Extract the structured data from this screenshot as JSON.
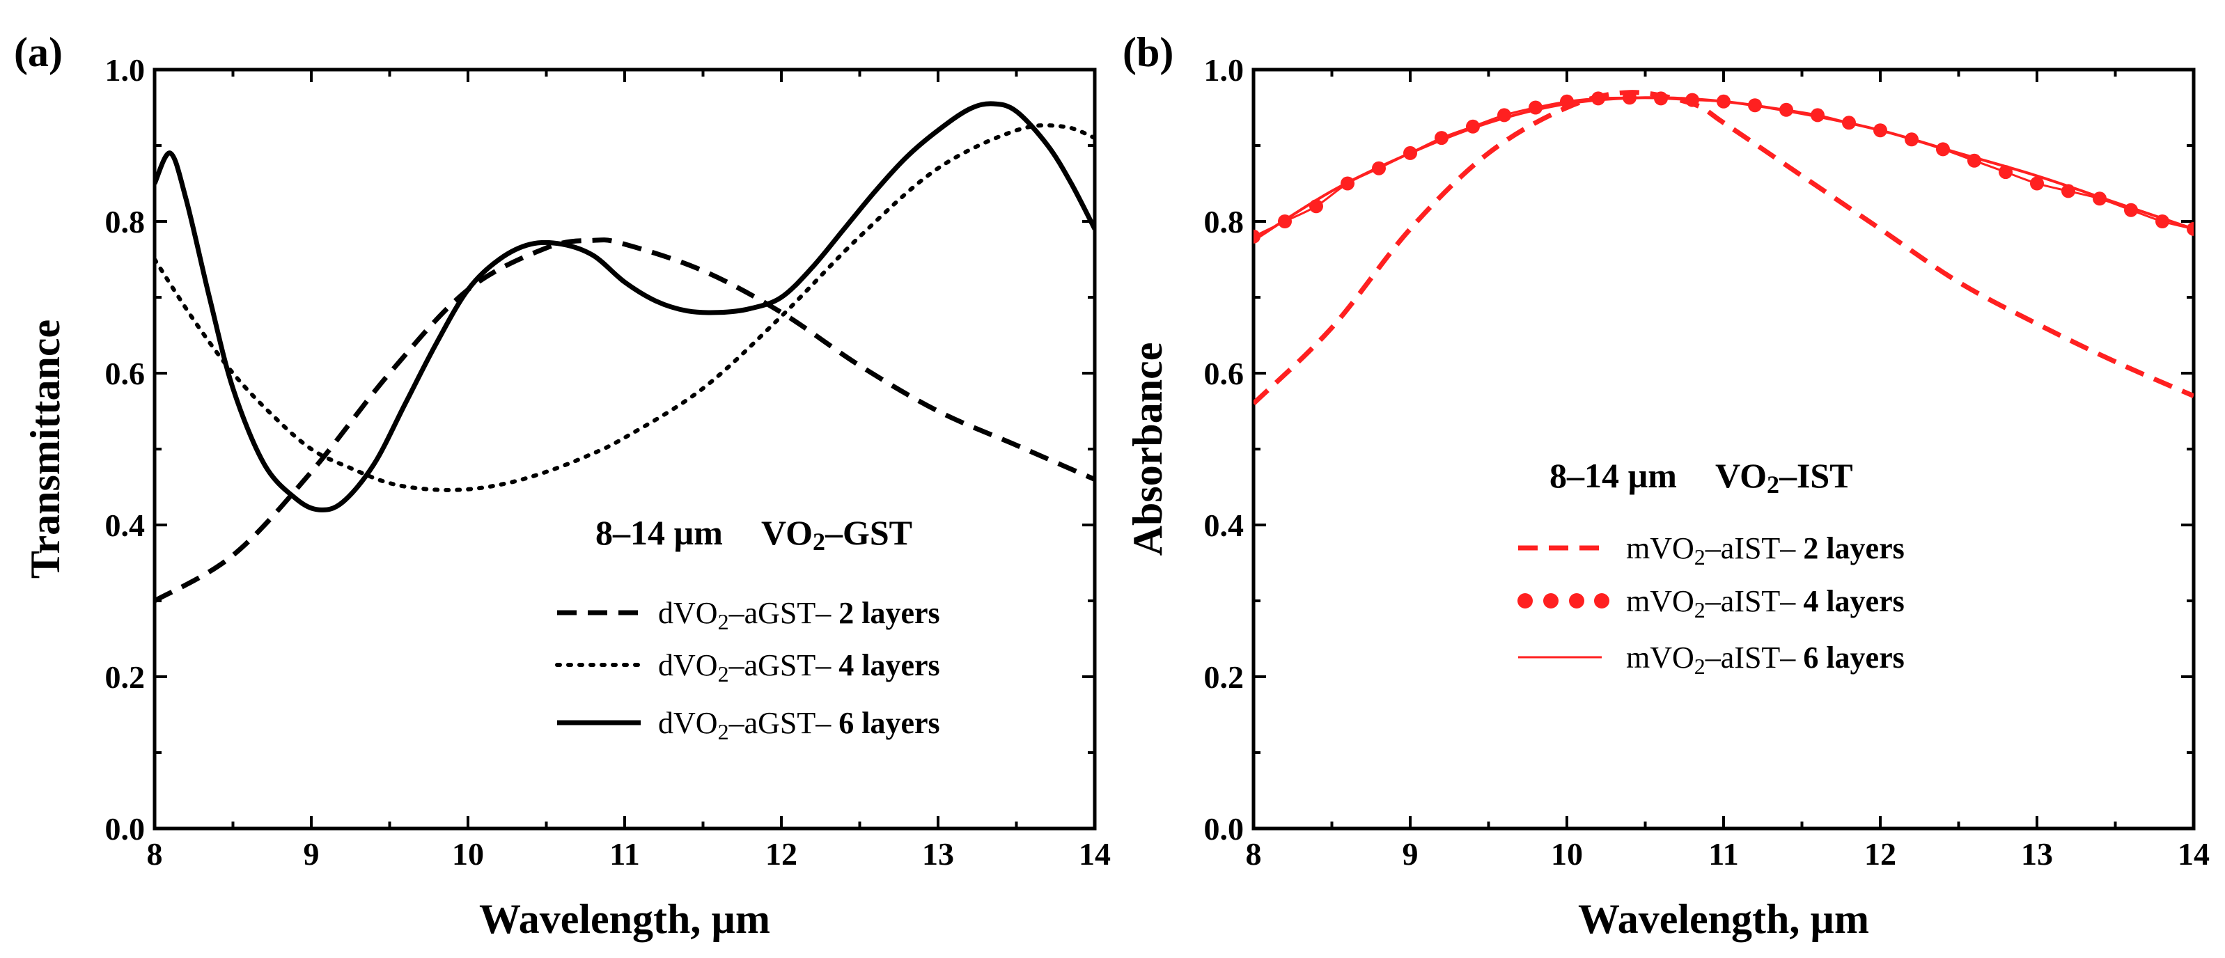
{
  "chart_data": [
    {
      "type": "line",
      "panel_label": "(a)",
      "xlabel": "Wavelength, µm",
      "ylabel": "Transmittance",
      "xlim": [
        8,
        14
      ],
      "ylim": [
        0.0,
        1.0
      ],
      "x_ticks": [
        "8",
        "9",
        "10",
        "11",
        "12",
        "13",
        "14"
      ],
      "y_ticks": [
        "0.0",
        "0.2",
        "0.4",
        "0.6",
        "0.8",
        "1.0"
      ],
      "annotation": {
        "range": "8–14 µm",
        "material": "VO",
        "sub": "2",
        "rest": "–GST"
      },
      "legend_position": "lower-right",
      "color": "#000000",
      "series": [
        {
          "name": "dVO2–aGST– 2 layers",
          "label_a": "dVO",
          "label_sub": "2",
          "label_b": "–aGST– ",
          "label_bold": "2 layers",
          "style": "dashed",
          "x": [
            8.0,
            8.5,
            9.0,
            9.5,
            10.0,
            10.5,
            10.8,
            11.0,
            11.5,
            12.0,
            12.5,
            13.0,
            13.5,
            14.0
          ],
          "y": [
            0.3,
            0.36,
            0.47,
            0.6,
            0.71,
            0.765,
            0.775,
            0.77,
            0.735,
            0.68,
            0.61,
            0.55,
            0.505,
            0.46
          ]
        },
        {
          "name": "dVO2–aGST– 4 layers",
          "label_a": "dVO",
          "label_sub": "2",
          "label_b": "–aGST– ",
          "label_bold": "4 layers",
          "style": "dotted",
          "x": [
            8.0,
            8.25,
            8.5,
            8.75,
            9.0,
            9.25,
            9.5,
            9.75,
            10.0,
            10.25,
            10.5,
            10.75,
            11.0,
            11.5,
            12.0,
            12.5,
            13.0,
            13.5,
            13.8,
            14.0
          ],
          "y": [
            0.75,
            0.67,
            0.6,
            0.545,
            0.5,
            0.475,
            0.455,
            0.447,
            0.447,
            0.455,
            0.47,
            0.49,
            0.515,
            0.58,
            0.675,
            0.78,
            0.87,
            0.92,
            0.925,
            0.91
          ]
        },
        {
          "name": "dVO2–aGST– 6 layers",
          "label_a": "dVO",
          "label_sub": "2",
          "label_b": "–aGST– ",
          "label_bold": "6 layers",
          "style": "solid",
          "x": [
            8.0,
            8.1,
            8.2,
            8.35,
            8.5,
            8.7,
            8.9,
            9.05,
            9.2,
            9.4,
            9.6,
            9.8,
            10.0,
            10.2,
            10.4,
            10.6,
            10.8,
            11.0,
            11.2,
            11.4,
            11.6,
            11.8,
            12.0,
            12.2,
            12.4,
            12.6,
            12.8,
            13.0,
            13.2,
            13.35,
            13.5,
            13.7,
            13.85,
            14.0
          ],
          "y": [
            0.85,
            0.89,
            0.83,
            0.7,
            0.58,
            0.48,
            0.435,
            0.42,
            0.43,
            0.48,
            0.56,
            0.64,
            0.71,
            0.75,
            0.77,
            0.77,
            0.755,
            0.72,
            0.695,
            0.682,
            0.68,
            0.685,
            0.7,
            0.74,
            0.79,
            0.84,
            0.885,
            0.92,
            0.948,
            0.955,
            0.945,
            0.9,
            0.85,
            0.79
          ]
        }
      ]
    },
    {
      "type": "line",
      "panel_label": "(b)",
      "xlabel": "Wavelength, µm",
      "ylabel": "Absorbance",
      "xlim": [
        8,
        14
      ],
      "ylim": [
        0.0,
        1.0
      ],
      "x_ticks": [
        "8",
        "9",
        "10",
        "11",
        "12",
        "13",
        "14"
      ],
      "y_ticks": [
        "0.0",
        "0.2",
        "0.4",
        "0.6",
        "0.8",
        "1.0"
      ],
      "annotation": {
        "range": "8–14 µm",
        "material": "VO",
        "sub": "2",
        "rest": "–IST"
      },
      "legend_position": "center-right",
      "color": "#ff2020",
      "series": [
        {
          "name": "mVO2–aIST– 2 layers",
          "label_a": "mVO",
          "label_sub": "2",
          "label_b": "–aIST– ",
          "label_bold": "2 layers",
          "style": "dashed",
          "x": [
            8.0,
            8.5,
            9.0,
            9.5,
            10.0,
            10.4,
            10.8,
            11.0,
            11.5,
            12.0,
            12.5,
            13.0,
            13.5,
            14.0
          ],
          "y": [
            0.56,
            0.66,
            0.79,
            0.89,
            0.95,
            0.97,
            0.955,
            0.93,
            0.86,
            0.79,
            0.72,
            0.665,
            0.615,
            0.57
          ]
        },
        {
          "name": "mVO2–aIST– 4 layers",
          "label_a": "mVO",
          "label_sub": "2",
          "label_b": "–aIST– ",
          "label_bold": "4 layers",
          "style": "dots",
          "x": [
            8.0,
            8.2,
            8.4,
            8.6,
            8.8,
            9.0,
            9.2,
            9.4,
            9.6,
            9.8,
            10.0,
            10.2,
            10.4,
            10.6,
            10.8,
            11.0,
            11.2,
            11.4,
            11.6,
            11.8,
            12.0,
            12.2,
            12.4,
            12.6,
            12.8,
            13.0,
            13.2,
            13.4,
            13.6,
            13.8,
            14.0
          ],
          "y": [
            0.78,
            0.8,
            0.82,
            0.85,
            0.87,
            0.89,
            0.91,
            0.925,
            0.94,
            0.95,
            0.958,
            0.962,
            0.963,
            0.962,
            0.96,
            0.958,
            0.953,
            0.947,
            0.94,
            0.93,
            0.92,
            0.908,
            0.895,
            0.88,
            0.865,
            0.85,
            0.84,
            0.83,
            0.815,
            0.8,
            0.79
          ]
        },
        {
          "name": "mVO2–aIST– 6 layers",
          "label_a": "mVO",
          "label_sub": "2",
          "label_b": "–aIST– ",
          "label_bold": "6 layers",
          "style": "solid",
          "x": [
            8.0,
            8.5,
            9.0,
            9.5,
            10.0,
            10.5,
            11.0,
            11.5,
            12.0,
            12.5,
            13.0,
            13.5,
            14.0
          ],
          "y": [
            0.775,
            0.84,
            0.89,
            0.93,
            0.955,
            0.963,
            0.958,
            0.942,
            0.92,
            0.89,
            0.86,
            0.825,
            0.79
          ]
        }
      ]
    }
  ]
}
